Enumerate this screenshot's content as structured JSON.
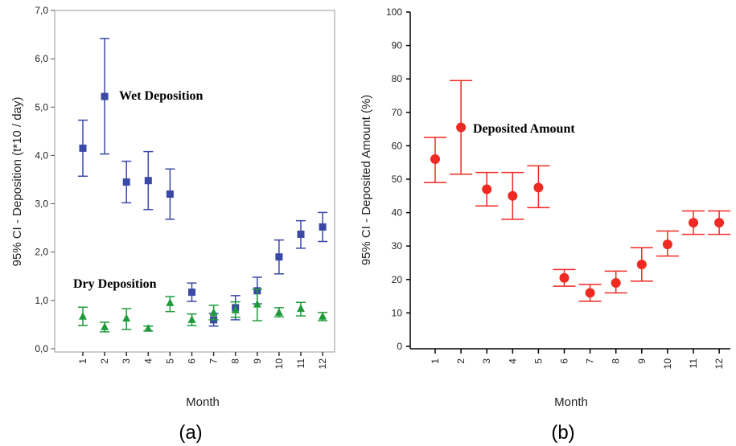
{
  "colors": {
    "wet": "#3a48a6",
    "dry": "#1f9a3a",
    "deposited": "#ee2a22"
  },
  "chart_data": [
    {
      "type": "scatter",
      "panel_label": "(a)",
      "xlabel": "Month",
      "ylabel": "95% CI - Deposition (t*10 / day)",
      "categories": [
        "1",
        "2",
        "3",
        "4",
        "5",
        "6",
        "7",
        "8",
        "9",
        "10",
        "11",
        "12"
      ],
      "yticks": [
        "0,0",
        "1,0",
        "2,0",
        "3,0",
        "4,0",
        "5,0",
        "6,0",
        "7,0"
      ],
      "ylim": [
        0,
        7
      ],
      "grid": false,
      "series": [
        {
          "name": "Wet Deposition",
          "marker": "square",
          "mean": [
            4.15,
            5.22,
            3.45,
            3.48,
            3.2,
            1.17,
            0.6,
            0.85,
            1.2,
            1.9,
            2.37,
            2.52
          ],
          "lower": [
            3.57,
            4.03,
            3.02,
            2.88,
            2.68,
            0.98,
            0.47,
            0.6,
            0.93,
            1.55,
            2.08,
            2.22
          ],
          "upper": [
            4.73,
            6.42,
            3.88,
            4.08,
            3.72,
            1.36,
            0.73,
            1.1,
            1.48,
            2.25,
            2.65,
            2.82
          ]
        },
        {
          "name": "Dry Deposition",
          "marker": "triangle",
          "mean": [
            0.67,
            0.45,
            0.63,
            0.42,
            0.95,
            0.6,
            0.75,
            0.8,
            0.92,
            0.75,
            0.83,
            0.67
          ],
          "lower": [
            0.48,
            0.35,
            0.4,
            0.37,
            0.77,
            0.48,
            0.6,
            0.65,
            0.58,
            0.66,
            0.68,
            0.58
          ],
          "upper": [
            0.86,
            0.55,
            0.83,
            0.47,
            1.08,
            0.72,
            0.9,
            0.97,
            1.23,
            0.85,
            0.96,
            0.75
          ]
        }
      ]
    },
    {
      "type": "scatter",
      "panel_label": "(b)",
      "xlabel": "Month",
      "ylabel": "95% CI - Deposited Amount (%)",
      "categories": [
        "1",
        "2",
        "3",
        "4",
        "5",
        "6",
        "7",
        "8",
        "9",
        "10",
        "11",
        "12"
      ],
      "yticks": [
        "0",
        "10",
        "20",
        "30",
        "40",
        "50",
        "60",
        "70",
        "80",
        "90",
        "100"
      ],
      "ylim": [
        0,
        100
      ],
      "grid": false,
      "series": [
        {
          "name": "Deposited Amount",
          "marker": "circle",
          "mean": [
            56,
            65.5,
            47,
            45,
            47.5,
            20.5,
            16,
            19,
            24.5,
            30.5,
            37,
            37
          ],
          "lower": [
            49,
            51.5,
            42,
            38,
            41.5,
            18,
            13.5,
            16,
            19.5,
            27,
            33.5,
            33.5
          ],
          "upper": [
            62.5,
            79.5,
            52,
            52,
            54,
            23,
            18.5,
            22.5,
            29.5,
            34.5,
            40.5,
            40.5
          ]
        }
      ]
    }
  ]
}
